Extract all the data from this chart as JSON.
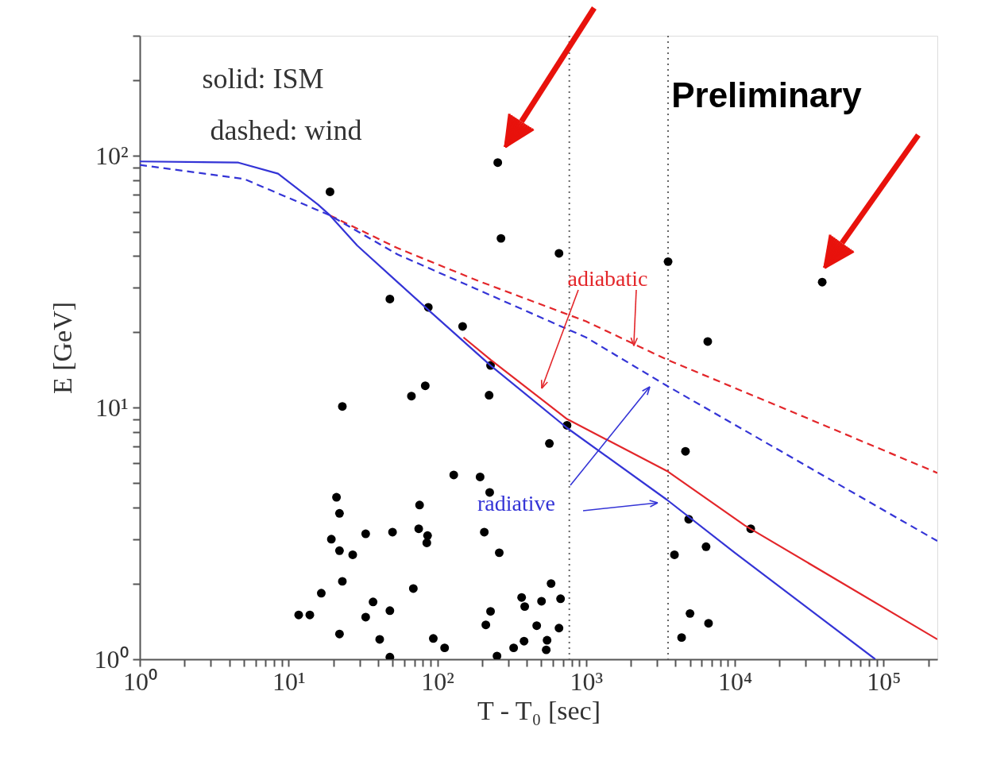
{
  "chart_data": {
    "type": "scatter",
    "xlabel": "T - T₀ [sec]",
    "ylabel": "E [GeV]",
    "log": "xy",
    "grid": false,
    "marker": "circle",
    "xlim": [
      1,
      230000
    ],
    "ylim": [
      1,
      300
    ],
    "xticks": [
      {
        "value": 1,
        "label": "10⁰"
      },
      {
        "value": 2,
        "label": null
      },
      {
        "value": 3,
        "label": null
      },
      {
        "value": 4,
        "label": null
      },
      {
        "value": 5,
        "label": null
      },
      {
        "value": 6,
        "label": null
      },
      {
        "value": 7,
        "label": null
      },
      {
        "value": 8,
        "label": null
      },
      {
        "value": 9,
        "label": null
      },
      {
        "value": 10,
        "label": "10¹"
      },
      {
        "value": 20,
        "label": null
      },
      {
        "value": 30,
        "label": null
      },
      {
        "value": 40,
        "label": null
      },
      {
        "value": 50,
        "label": null
      },
      {
        "value": 60,
        "label": null
      },
      {
        "value": 70,
        "label": null
      },
      {
        "value": 80,
        "label": null
      },
      {
        "value": 90,
        "label": null
      },
      {
        "value": 100,
        "label": "10²"
      },
      {
        "value": 200,
        "label": null
      },
      {
        "value": 300,
        "label": null
      },
      {
        "value": 400,
        "label": null
      },
      {
        "value": 500,
        "label": null
      },
      {
        "value": 600,
        "label": null
      },
      {
        "value": 700,
        "label": null
      },
      {
        "value": 800,
        "label": null
      },
      {
        "value": 900,
        "label": null
      },
      {
        "value": 1000,
        "label": "10³"
      },
      {
        "value": 2000,
        "label": null
      },
      {
        "value": 3000,
        "label": null
      },
      {
        "value": 4000,
        "label": null
      },
      {
        "value": 5000,
        "label": null
      },
      {
        "value": 6000,
        "label": null
      },
      {
        "value": 7000,
        "label": null
      },
      {
        "value": 8000,
        "label": null
      },
      {
        "value": 9000,
        "label": null
      },
      {
        "value": 10000,
        "label": "10⁴"
      },
      {
        "value": 20000,
        "label": null
      },
      {
        "value": 30000,
        "label": null
      },
      {
        "value": 40000,
        "label": null
      },
      {
        "value": 50000,
        "label": null
      },
      {
        "value": 60000,
        "label": null
      },
      {
        "value": 70000,
        "label": null
      },
      {
        "value": 80000,
        "label": null
      },
      {
        "value": 90000,
        "label": null
      },
      {
        "value": 100000,
        "label": "10⁵"
      },
      {
        "value": 200000,
        "label": null
      }
    ],
    "yticks": [
      {
        "value": 1,
        "label": "10⁰"
      },
      {
        "value": 2,
        "label": null
      },
      {
        "value": 3,
        "label": null
      },
      {
        "value": 4,
        "label": null
      },
      {
        "value": 5,
        "label": null
      },
      {
        "value": 6,
        "label": null
      },
      {
        "value": 7,
        "label": null
      },
      {
        "value": 8,
        "label": null
      },
      {
        "value": 9,
        "label": null
      },
      {
        "value": 10,
        "label": "10¹"
      },
      {
        "value": 20,
        "label": null
      },
      {
        "value": 30,
        "label": null
      },
      {
        "value": 40,
        "label": null
      },
      {
        "value": 50,
        "label": null
      },
      {
        "value": 60,
        "label": null
      },
      {
        "value": 70,
        "label": null
      },
      {
        "value": 80,
        "label": null
      },
      {
        "value": 90,
        "label": null
      },
      {
        "value": 100,
        "label": "10²"
      },
      {
        "value": 200,
        "label": null
      },
      {
        "value": 300,
        "label": null
      }
    ],
    "series": [
      {
        "type": "scatter",
        "color": "#000000",
        "x": [
          19,
          255,
          268,
          48,
          87,
          148,
          228,
          67,
          83,
          223,
          23,
          658,
          3560,
          38700,
          6580,
          745,
          567,
          4660,
          12800,
          4900,
          6410,
          3930,
          5000,
          6660,
          4390,
          129,
          194,
          225,
          21,
          22,
          76,
          19.4,
          33,
          50,
          75,
          86,
          85,
          207,
          261,
          22,
          27,
          23,
          16.6,
          69,
          11.7,
          13.9,
          37,
          33,
          48,
          22,
          41,
          94,
          112,
          48,
          252,
          228,
          212,
          582,
          369,
          387,
          502,
          674,
          466,
          658,
          383,
          547,
          326,
          540
        ],
        "values": [
          72,
          94,
          47,
          27,
          25,
          21,
          14.7,
          11.1,
          12.2,
          11.2,
          10.1,
          41,
          38,
          31.5,
          18.3,
          8.5,
          7.2,
          6.7,
          3.3,
          3.6,
          2.8,
          2.6,
          1.52,
          1.39,
          1.22,
          5.4,
          5.3,
          4.6,
          4.4,
          3.8,
          4.1,
          3.0,
          3.15,
          3.2,
          3.3,
          3.1,
          2.9,
          3.2,
          2.65,
          2.7,
          2.6,
          2.04,
          1.83,
          1.91,
          1.5,
          1.5,
          1.69,
          1.47,
          1.56,
          1.26,
          1.2,
          1.21,
          1.11,
          1.02,
          1.03,
          1.55,
          1.37,
          2.0,
          1.76,
          1.62,
          1.7,
          1.74,
          1.36,
          1.33,
          1.18,
          1.19,
          1.11,
          1.09
        ]
      },
      {
        "type": "line",
        "color": "#e3262a",
        "line_style": "dashed",
        "marker": "none",
        "x": [
          19,
          54,
          185,
          1000,
          3500,
          29000,
          230000
        ],
        "values": [
          58,
          43,
          32,
          22,
          15.5,
          9.2,
          5.5
        ]
      },
      {
        "type": "line",
        "color": "#3434d6",
        "line_style": "dashed",
        "marker": "none",
        "x": [
          1,
          5,
          19,
          54,
          185,
          1000,
          3500,
          230000
        ],
        "values": [
          92,
          81,
          58,
          40.6,
          29.5,
          19,
          12.2,
          2.95
        ]
      },
      {
        "type": "line",
        "color": "#e3262a",
        "line_style": "solid",
        "marker": "none",
        "x": [
          150,
          228,
          745,
          3500,
          11700,
          230000
        ],
        "values": [
          19.0,
          15.5,
          9.0,
          5.6,
          3.4,
          1.2
        ]
      },
      {
        "type": "line",
        "color": "#3434d6",
        "line_style": "solid",
        "marker": "none",
        "x": [
          1,
          4.6,
          8.5,
          15.8,
          19,
          29,
          54,
          90,
          228,
          745,
          3500,
          10000,
          88000
        ],
        "values": [
          95,
          94,
          85,
          64,
          58,
          44,
          31.5,
          24,
          14.7,
          8.3,
          4.3,
          2.65,
          1.0
        ]
      }
    ],
    "ref_lines": [
      {
        "axis": "x",
        "value": 772,
        "color": "#666666",
        "line_style": "dotted"
      },
      {
        "axis": "x",
        "value": 3560,
        "color": "#666666",
        "line_style": "dotted"
      }
    ],
    "annotations": [
      "solid: ISM",
      "dashed:  wind",
      "Preliminary",
      {
        "text": "adiabatic",
        "x": 2094,
        "y": 17.6
      },
      "radiative"
    ]
  }
}
